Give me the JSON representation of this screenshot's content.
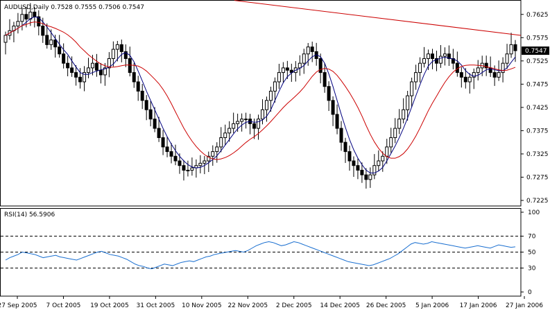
{
  "chart_data": [
    {
      "type": "candlestick",
      "title": "AUDUSD,Daily",
      "ohlc_readout": "0.7528 0.7555 0.7506 0.7547",
      "last_price_label": "0.7547",
      "y_ticks": [
        "0.7625",
        "0.7575",
        "0.7525",
        "0.7475",
        "0.7425",
        "0.7375",
        "0.7325",
        "0.7275",
        "0.7225"
      ],
      "ylim": [
        0.7225,
        0.765
      ],
      "x_ticks": [
        "27 Sep 2005",
        "7 Oct 2005",
        "19 Oct 2005",
        "31 Oct 2005",
        "10 Nov 2005",
        "22 Nov 2005",
        "2 Dec 2005",
        "14 Dec 2005",
        "26 Dec 2005",
        "5 Jan 2006",
        "17 Jan 2006",
        "27 Jan 2006"
      ],
      "closes": [
        0.758,
        0.759,
        0.76,
        0.761,
        0.7625,
        0.7615,
        0.763,
        0.762,
        0.76,
        0.758,
        0.756,
        0.757,
        0.7555,
        0.754,
        0.752,
        0.751,
        0.75,
        0.749,
        0.748,
        0.75,
        0.751,
        0.752,
        0.7505,
        0.7495,
        0.751,
        0.753,
        0.755,
        0.756,
        0.7545,
        0.753,
        0.75,
        0.748,
        0.746,
        0.744,
        0.742,
        0.74,
        0.738,
        0.736,
        0.734,
        0.733,
        0.732,
        0.731,
        0.73,
        0.729,
        0.729,
        0.7295,
        0.73,
        0.7305,
        0.731,
        0.732,
        0.733,
        0.734,
        0.736,
        0.737,
        0.738,
        0.739,
        0.7395,
        0.74,
        0.74,
        0.739,
        0.738,
        0.74,
        0.742,
        0.744,
        0.746,
        0.748,
        0.75,
        0.751,
        0.7505,
        0.75,
        0.751,
        0.752,
        0.754,
        0.7555,
        0.7545,
        0.753,
        0.75,
        0.747,
        0.744,
        0.741,
        0.738,
        0.735,
        0.733,
        0.731,
        0.73,
        0.729,
        0.728,
        0.727,
        0.728,
        0.73,
        0.731,
        0.732,
        0.734,
        0.736,
        0.738,
        0.74,
        0.742,
        0.745,
        0.748,
        0.75,
        0.752,
        0.753,
        0.754,
        0.753,
        0.752,
        0.7535,
        0.754,
        0.753,
        0.752,
        0.75,
        0.749,
        0.748,
        0.749,
        0.75,
        0.751,
        0.752,
        0.751,
        0.75,
        0.749,
        0.75,
        0.752,
        0.754,
        0.756,
        0.7547
      ],
      "series": [
        {
          "name": "",
          "color": "#00007f",
          "role": "fast-ma",
          "period": 5
        },
        {
          "name": "",
          "color": "#cc0000",
          "role": "slow-ma",
          "period": 14
        }
      ],
      "trendline": {
        "color": "#cc0000",
        "from": 0.7655,
        "to": 0.758
      },
      "up_color": "#ffffff",
      "down_color": "#000000"
    },
    {
      "type": "line",
      "title": "RSI(14) 56.5906",
      "y_ticks": [
        "100",
        "70",
        "50",
        "30",
        "0"
      ],
      "ylim": [
        0,
        100
      ],
      "levels": [
        70,
        50,
        30
      ],
      "color": "#1a6fd0",
      "values": [
        40,
        43,
        45,
        47,
        50,
        49,
        48,
        47,
        45,
        43,
        44,
        45,
        46,
        44,
        43,
        42,
        41,
        40,
        42,
        44,
        46,
        48,
        50,
        51,
        49,
        47,
        46,
        45,
        43,
        41,
        38,
        35,
        33,
        32,
        30,
        29,
        31,
        33,
        35,
        34,
        33,
        35,
        37,
        38,
        39,
        38,
        40,
        42,
        44,
        45,
        47,
        48,
        49,
        50,
        51,
        52,
        51,
        50,
        52,
        55,
        58,
        60,
        62,
        63,
        62,
        60,
        58,
        59,
        61,
        63,
        62,
        60,
        58,
        56,
        54,
        52,
        50,
        48,
        46,
        44,
        42,
        40,
        38,
        37,
        36,
        35,
        34,
        33,
        34,
        36,
        38,
        40,
        42,
        45,
        48,
        52,
        56,
        60,
        62,
        61,
        60,
        61,
        63,
        62,
        61,
        60,
        59,
        58,
        57,
        56,
        55,
        56,
        57,
        58,
        57,
        56,
        55,
        57,
        59,
        58,
        57,
        56,
        56.59
      ]
    }
  ]
}
